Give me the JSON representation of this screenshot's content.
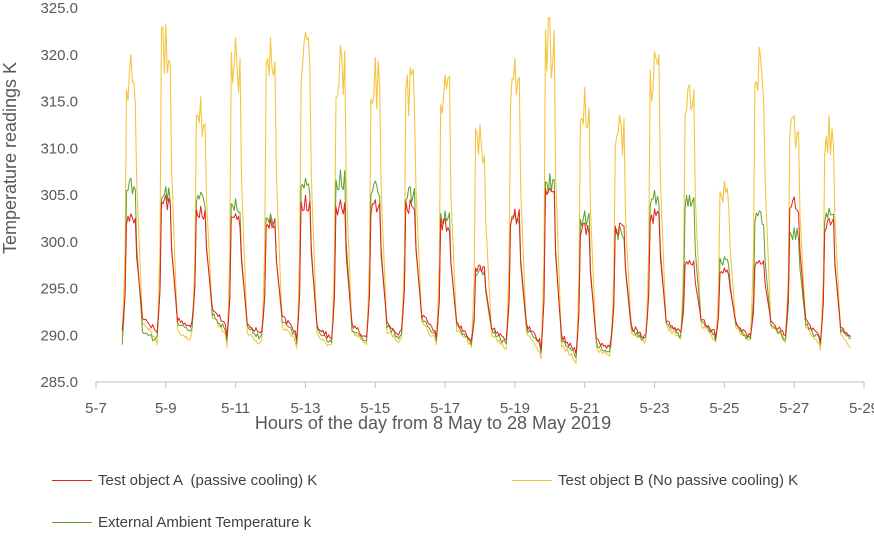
{
  "chart_data": {
    "type": "line",
    "xlabel": "Hours of the day from 8 May to 28 May 2019",
    "ylabel": "Temperature readings K",
    "ylim": [
      285.0,
      325.0
    ],
    "yticks": [
      "285.0",
      "290.0",
      "295.0",
      "300.0",
      "305.0",
      "310.0",
      "315.0",
      "320.0",
      "325.0"
    ],
    "xlim": [
      7,
      29
    ],
    "xticks": [
      "5-7",
      "5-9",
      "5-11",
      "5-13",
      "5-15",
      "5-17",
      "5-19",
      "5-21",
      "5-23",
      "5-25",
      "5-27",
      "5-29"
    ],
    "x_unit": "day of May 2019",
    "grid": false,
    "legend_position": "bottom",
    "series": [
      {
        "name": "Test object A  (passive cooling) K",
        "color": "#e8201c",
        "daily_min_K": [
          290.5,
          290.3,
          291.5,
          289.8,
          290.5,
          289.5,
          289.6,
          289.8,
          290.6,
          289.8,
          289.4,
          289.5,
          288.4,
          288.0,
          289.5,
          290.1,
          290.3,
          289.7,
          290.0,
          290.0,
          289.3
        ],
        "daily_peak_K": [
          303.0,
          305.0,
          303.8,
          303.0,
          302.5,
          305.0,
          304.5,
          304.5,
          304.5,
          302.5,
          297.5,
          303.5,
          305.7,
          302.0,
          302.0,
          303.5,
          298.0,
          297.2,
          298.0,
          304.8,
          302.5
        ]
      },
      {
        "name": "Test object B (No passive cooling) K",
        "color": "#f5c542",
        "daily_min_K": [
          289.8,
          289.0,
          290.5,
          288.7,
          289.5,
          288.6,
          289.0,
          289.0,
          289.7,
          289.0,
          288.7,
          288.5,
          287.5,
          287.0,
          288.9,
          289.5,
          289.6,
          289.3,
          289.6,
          289.2,
          288.4
        ],
        "daily_peak_K": [
          320.0,
          323.3,
          315.5,
          321.8,
          321.8,
          322.4,
          321.0,
          319.7,
          318.6,
          317.8,
          312.5,
          319.6,
          324.0,
          316.5,
          313.5,
          320.3,
          316.8,
          306.5,
          320.8,
          313.5,
          313.5
        ]
      },
      {
        "name": "External Ambient Temperature k",
        "color": "#5aa02c",
        "daily_min_K": [
          289.0,
          289.9,
          290.8,
          289.4,
          290.1,
          289.1,
          289.2,
          289.4,
          290.1,
          289.4,
          289.0,
          289.1,
          288.1,
          287.6,
          289.1,
          289.8,
          290.0,
          289.4,
          289.6,
          289.6,
          289.0
        ],
        "daily_peak_K": [
          306.8,
          305.9,
          305.3,
          304.6,
          303.0,
          306.8,
          307.7,
          306.5,
          305.9,
          303.3,
          297.2,
          303.0,
          307.3,
          303.3,
          301.7,
          305.5,
          305.0,
          298.4,
          303.3,
          301.5,
          303.6
        ]
      }
    ]
  }
}
